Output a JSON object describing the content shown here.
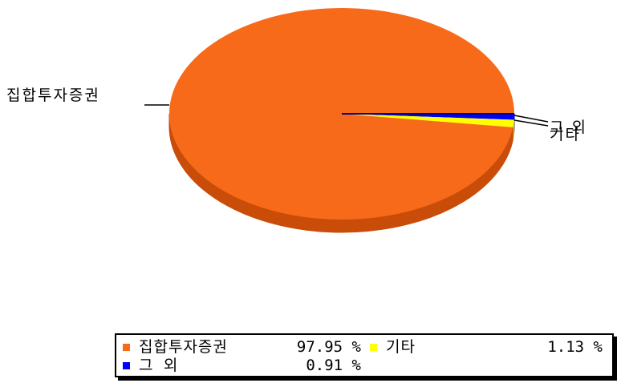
{
  "chart_data": {
    "type": "pie",
    "slices": [
      {
        "label": "집합투자증권",
        "value": 97.95,
        "color": "#f76a1a",
        "side_color": "#c94c08",
        "value_label": "97.95 %"
      },
      {
        "label": "기타",
        "value": 1.13,
        "color": "#ffff00",
        "side_color": "#c8c800",
        "value_label": "1.13 %"
      },
      {
        "label": "그 외",
        "value": 0.91,
        "color": "#0000ff",
        "side_color": "#0000a0",
        "value_label": "0.91 %"
      }
    ],
    "legend_placement": "bottom"
  }
}
